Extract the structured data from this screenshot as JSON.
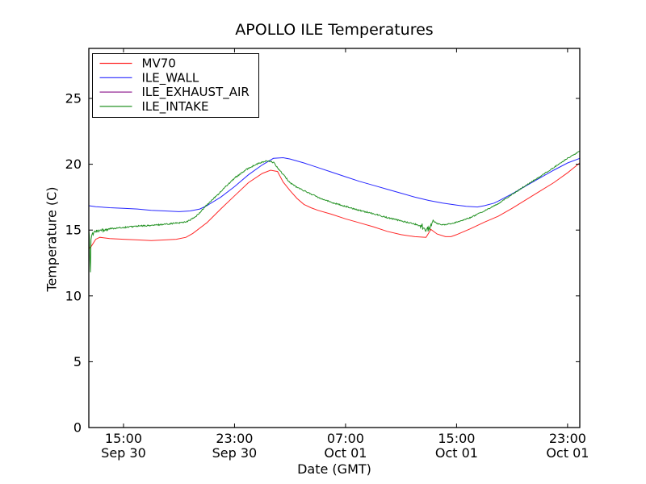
{
  "title": "APOLLO ILE Temperatures",
  "chart_data": {
    "type": "line",
    "title": "APOLLO ILE Temperatures",
    "xlabel": "Date (GMT)",
    "ylabel": "Temperature (C)",
    "x_unit": "hours_after_Sep30_12:00_GMT",
    "xlim": [
      0.5,
      35.88
    ],
    "ylim": [
      0,
      28.8
    ],
    "yticks": [
      0,
      5,
      10,
      15,
      20,
      25
    ],
    "xticks": [
      {
        "t": 3,
        "time": "15:00",
        "date": "Sep 30"
      },
      {
        "t": 11,
        "time": "23:00",
        "date": "Sep 30"
      },
      {
        "t": 19,
        "time": "07:00",
        "date": "Oct 01"
      },
      {
        "t": 27,
        "time": "15:00",
        "date": "Oct 01"
      },
      {
        "t": 35,
        "time": "23:00",
        "date": "Oct 01"
      }
    ],
    "grid": false,
    "legend": {
      "position": "upper left",
      "border_color": "#000000",
      "fill": "#ffffff"
    },
    "axes_color": "#000000",
    "series": [
      {
        "name": "MV70",
        "color": "#ff0000",
        "points": [
          [
            0.5,
            13.55
          ],
          [
            0.7,
            13.8
          ],
          [
            1.0,
            14.3
          ],
          [
            1.3,
            14.45
          ],
          [
            2,
            14.35
          ],
          [
            3,
            14.3
          ],
          [
            4,
            14.25
          ],
          [
            5,
            14.2
          ],
          [
            6,
            14.25
          ],
          [
            6.8,
            14.3
          ],
          [
            7.5,
            14.45
          ],
          [
            8,
            14.75
          ],
          [
            9,
            15.55
          ],
          [
            10,
            16.6
          ],
          [
            11,
            17.6
          ],
          [
            12,
            18.6
          ],
          [
            13,
            19.3
          ],
          [
            13.6,
            19.55
          ],
          [
            14.1,
            19.45
          ],
          [
            14.5,
            18.65
          ],
          [
            15,
            18.0
          ],
          [
            15.5,
            17.4
          ],
          [
            16,
            16.95
          ],
          [
            16.5,
            16.7
          ],
          [
            17,
            16.5
          ],
          [
            18,
            16.2
          ],
          [
            19,
            15.85
          ],
          [
            20,
            15.55
          ],
          [
            21,
            15.25
          ],
          [
            22,
            14.9
          ],
          [
            23,
            14.65
          ],
          [
            24,
            14.5
          ],
          [
            24.8,
            14.45
          ],
          [
            25.15,
            15.05
          ],
          [
            25.6,
            14.7
          ],
          [
            26.2,
            14.5
          ],
          [
            26.6,
            14.5
          ],
          [
            27,
            14.65
          ],
          [
            28,
            15.1
          ],
          [
            29,
            15.6
          ],
          [
            30,
            16.05
          ],
          [
            31,
            16.65
          ],
          [
            32,
            17.3
          ],
          [
            33,
            17.95
          ],
          [
            34,
            18.6
          ],
          [
            35,
            19.35
          ],
          [
            35.88,
            20.1
          ]
        ]
      },
      {
        "name": "ILE_WALL",
        "color": "#0000ff",
        "points": [
          [
            0.5,
            16.85
          ],
          [
            1,
            16.78
          ],
          [
            2,
            16.7
          ],
          [
            3,
            16.65
          ],
          [
            4,
            16.6
          ],
          [
            5,
            16.5
          ],
          [
            6,
            16.45
          ],
          [
            7,
            16.4
          ],
          [
            7.8,
            16.45
          ],
          [
            8.5,
            16.6
          ],
          [
            9,
            16.85
          ],
          [
            10,
            17.5
          ],
          [
            11,
            18.3
          ],
          [
            12,
            19.2
          ],
          [
            13,
            19.95
          ],
          [
            13.8,
            20.45
          ],
          [
            14.5,
            20.5
          ],
          [
            15,
            20.4
          ],
          [
            16,
            20.1
          ],
          [
            17,
            19.75
          ],
          [
            18,
            19.4
          ],
          [
            19,
            19.05
          ],
          [
            20,
            18.7
          ],
          [
            21,
            18.4
          ],
          [
            22,
            18.1
          ],
          [
            23,
            17.8
          ],
          [
            24,
            17.5
          ],
          [
            25,
            17.25
          ],
          [
            26,
            17.05
          ],
          [
            27,
            16.9
          ],
          [
            27.7,
            16.8
          ],
          [
            28.5,
            16.75
          ],
          [
            29,
            16.85
          ],
          [
            29.7,
            17.05
          ],
          [
            30,
            17.2
          ],
          [
            31,
            17.75
          ],
          [
            32,
            18.35
          ],
          [
            33,
            18.95
          ],
          [
            34,
            19.55
          ],
          [
            35,
            20.1
          ],
          [
            35.88,
            20.45
          ]
        ]
      },
      {
        "name": "ILE_EXHAUST_AIR",
        "color": "#800080",
        "points": [
          [
            0.5,
            0
          ],
          [
            35.88,
            0
          ]
        ]
      },
      {
        "name": "ILE_INTAKE",
        "color": "#008000",
        "noise_regions": [
          {
            "from": 0.5,
            "to": 1.9,
            "amp": 0.16
          },
          {
            "from": 1.9,
            "to": 24.4,
            "amp": 0.05
          },
          {
            "from": 24.4,
            "to": 25.2,
            "amp": 0.22
          },
          {
            "from": 25.2,
            "to": 35.88,
            "amp": 0.04
          }
        ],
        "points": [
          [
            0.5,
            14.9
          ],
          [
            0.56,
            14.6
          ],
          [
            0.6,
            10.7
          ],
          [
            0.66,
            14.55
          ],
          [
            0.9,
            14.85
          ],
          [
            1.2,
            14.95
          ],
          [
            1.6,
            15.05
          ],
          [
            2,
            15.1
          ],
          [
            3,
            15.2
          ],
          [
            4,
            15.3
          ],
          [
            5,
            15.35
          ],
          [
            6,
            15.45
          ],
          [
            7,
            15.55
          ],
          [
            7.6,
            15.65
          ],
          [
            8.2,
            16.0
          ],
          [
            9,
            16.9
          ],
          [
            10,
            17.9
          ],
          [
            10.5,
            18.45
          ],
          [
            11,
            18.95
          ],
          [
            12,
            19.7
          ],
          [
            12.7,
            20.05
          ],
          [
            13.3,
            20.25
          ],
          [
            13.8,
            20.15
          ],
          [
            14.2,
            19.6
          ],
          [
            14.6,
            19.1
          ],
          [
            15,
            18.6
          ],
          [
            15.5,
            18.25
          ],
          [
            16,
            18.0
          ],
          [
            17,
            17.5
          ],
          [
            18,
            17.1
          ],
          [
            19,
            16.8
          ],
          [
            20,
            16.5
          ],
          [
            21,
            16.25
          ],
          [
            22,
            15.95
          ],
          [
            23,
            15.7
          ],
          [
            24,
            15.45
          ],
          [
            24.5,
            15.3
          ],
          [
            24.9,
            15.05
          ],
          [
            25.1,
            15.15
          ],
          [
            25.3,
            15.75
          ],
          [
            25.55,
            15.5
          ],
          [
            26,
            15.4
          ],
          [
            26.7,
            15.5
          ],
          [
            27,
            15.6
          ],
          [
            28,
            15.95
          ],
          [
            29,
            16.45
          ],
          [
            30,
            17.0
          ],
          [
            31,
            17.7
          ],
          [
            32,
            18.4
          ],
          [
            33,
            19.05
          ],
          [
            34,
            19.75
          ],
          [
            35,
            20.45
          ],
          [
            35.88,
            21.0
          ]
        ]
      }
    ]
  }
}
